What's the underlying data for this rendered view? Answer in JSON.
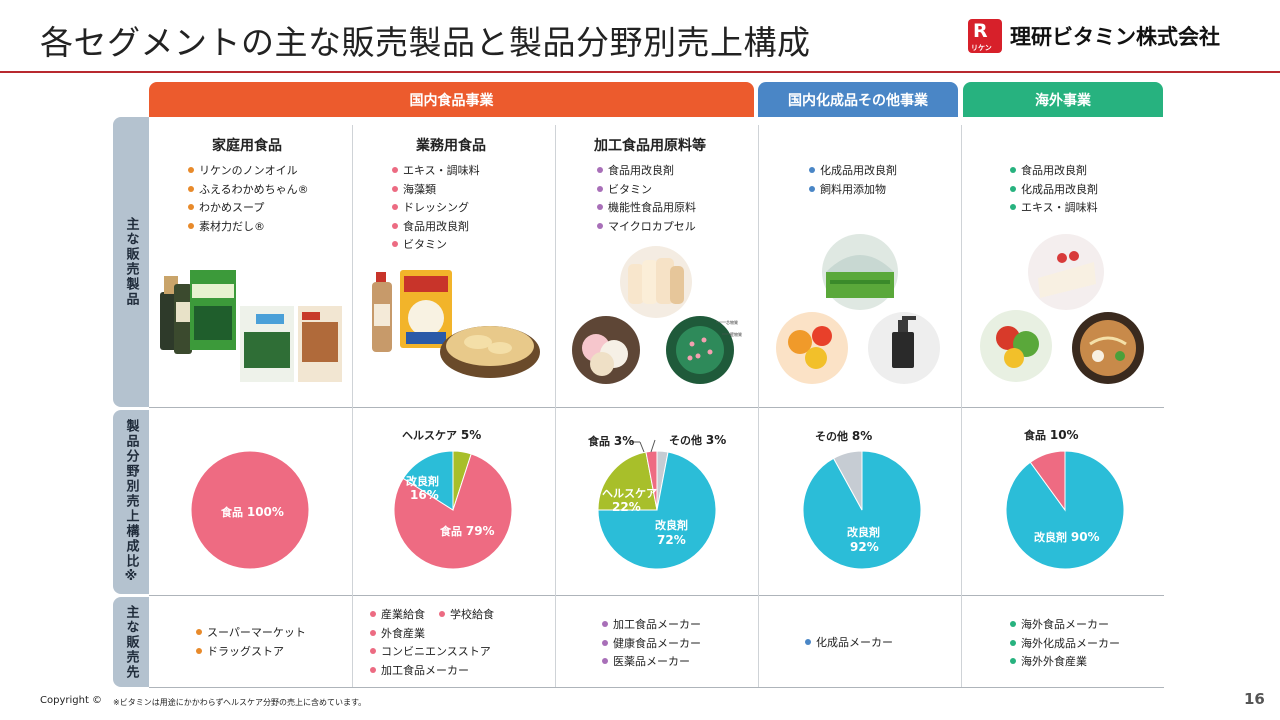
{
  "header": {
    "title": "各セグメントの主な販売製品と製品分野別売上構成",
    "logo_mark": "R",
    "logo_mark_sub": "リケン",
    "logo_text": "理研ビタミン株式会社"
  },
  "segments": [
    {
      "label": "国内食品事業",
      "color": "#ec5b2d"
    },
    {
      "label": "国内化成品その他事業",
      "color": "#4a86c6"
    },
    {
      "label": "海外事業",
      "color": "#27b27f"
    }
  ],
  "row_labels": {
    "products": "主な販売製品",
    "ratio": "製品分野別売上構成比※",
    "customers": "主な販売先"
  },
  "columns": [
    {
      "title": "家庭用食品",
      "title_color": "#e07a1f",
      "bullet_color": "#e88a2a",
      "products": [
        "リケンのノンオイル",
        "ふえるわかめちゃん®",
        "わかめスープ",
        "素材力だし®"
      ],
      "photos": [
        "dressing-bottles-photo",
        "wakame-package-photo",
        "wakame-bag-photo",
        "dashi-package-photo"
      ],
      "customers": [
        "スーパーマーケット",
        "ドラッグストア"
      ]
    },
    {
      "title": "業務用食品",
      "title_color": "#e44d6b",
      "bullet_color": "#ec6b82",
      "products": [
        "エキス・調味料",
        "海藻類",
        "ドレッシング",
        "食品用改良剤",
        "ビタミン"
      ],
      "photos": [
        "dressing-bottle-photo",
        "food-package-photo",
        "chips-bowl-photo"
      ],
      "customers": [
        [
          "産業給食",
          "学校給食"
        ],
        [
          "外食産業"
        ],
        [
          "コンビニエンスストア"
        ],
        [
          "加工食品メーカー"
        ]
      ]
    },
    {
      "title": "加工食品用原料等",
      "title_color": "#a062b4",
      "bullet_color": "#a86fb8",
      "products": [
        "食品用改良剤",
        "ビタミン",
        "機能性食品用原料",
        "マイクロカプセル"
      ],
      "photos": [
        "bread-photo",
        "mochi-photo",
        "microcapsule-illustration"
      ],
      "capsule_labels": [
        "芯物質",
        "壁物質"
      ],
      "customers": [
        "加工食品メーカー",
        "健康食品メーカー",
        "医薬品メーカー"
      ]
    },
    {
      "title": "",
      "title_color": "#4a86c6",
      "bullet_color": "#4a86c6",
      "products": [
        "化成品用改良剤",
        "飼料用添加物"
      ],
      "photos": [
        "greenhouse-photo",
        "jelly-photo",
        "cosmetics-bottle-photo"
      ],
      "customers": [
        "化成品メーカー"
      ]
    },
    {
      "title": "",
      "title_color": "#27b27f",
      "bullet_color": "#27b27f",
      "products": [
        "食品用改良剤",
        "化成品用改良剤",
        "エキス・調味料"
      ],
      "photos": [
        "cake-photo",
        "vegetables-photo",
        "ramen-photo"
      ],
      "customers": [
        "海外食品メーカー",
        "海外化成品メーカー",
        "海外外食産業"
      ]
    }
  ],
  "chart_data": [
    {
      "type": "pie",
      "segment": "家庭用食品",
      "slices": [
        {
          "label": "食品",
          "value": 100,
          "text": "100%",
          "color": "#ee6b82"
        }
      ]
    },
    {
      "type": "pie",
      "segment": "業務用食品",
      "slices": [
        {
          "label": "ヘルスケア",
          "value": 5,
          "text": "5%",
          "color": "#a8bf2a"
        },
        {
          "label": "食品",
          "value": 79,
          "text": "79%",
          "color": "#ee6b82"
        },
        {
          "label": "改良剤",
          "value": 16,
          "text": "16%",
          "color": "#2bbdd8"
        }
      ]
    },
    {
      "type": "pie",
      "segment": "加工食品用原料等",
      "slices": [
        {
          "label": "その他",
          "value": 3,
          "text": "3%",
          "color": "#c6ccd3"
        },
        {
          "label": "改良剤",
          "value": 72,
          "text": "72%",
          "color": "#2bbdd8"
        },
        {
          "label": "ヘルスケア",
          "value": 22,
          "text": "22%",
          "color": "#a8bf2a"
        },
        {
          "label": "食品",
          "value": 3,
          "text": "3%",
          "color": "#ee6b82"
        }
      ]
    },
    {
      "type": "pie",
      "segment": "国内化成品その他事業",
      "slices": [
        {
          "label": "改良剤",
          "value": 92,
          "text": "92%",
          "color": "#2bbdd8"
        },
        {
          "label": "その他",
          "value": 8,
          "text": "8%",
          "color": "#c6ccd3"
        }
      ]
    },
    {
      "type": "pie",
      "segment": "海外事業",
      "slices": [
        {
          "label": "改良剤",
          "value": 90,
          "text": "90%",
          "color": "#2bbdd8"
        },
        {
          "label": "食品",
          "value": 10,
          "text": "10%",
          "color": "#ee6b82"
        }
      ]
    }
  ],
  "footer": {
    "copyright": "Copyright ©",
    "note": "※ビタミンは用途にかかわらずヘルスケア分野の売上に含めています。",
    "page": "16"
  }
}
